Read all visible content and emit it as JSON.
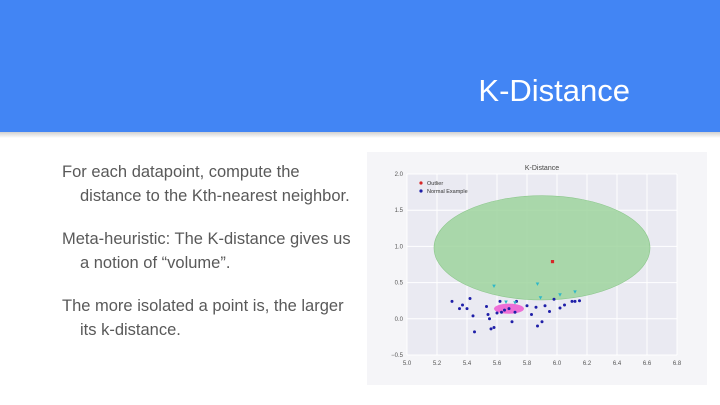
{
  "slide": {
    "title": "K-Distance",
    "bullets": [
      "For each datapoint, compute the distance to the Kth-nearest neighbor.",
      "Meta-heuristic: The K-distance gives us a notion of “volume”.",
      "The more isolated a point is, the larger its k-distance."
    ]
  },
  "colors": {
    "header": "#4285f4",
    "outlier": "#d62728",
    "normal": "#1f1fa8",
    "circle_fill": "#9ed39e",
    "highlight": "#ee44cc"
  },
  "chart_data": {
    "type": "scatter",
    "title": "K-Distance",
    "xlim": [
      5.0,
      6.8
    ],
    "ylim": [
      -0.5,
      2.0
    ],
    "x_ticks": [
      "5.0",
      "5.2",
      "5.4",
      "5.6",
      "5.8",
      "6.0",
      "6.2",
      "6.4",
      "6.6",
      "6.8"
    ],
    "y_ticks": [
      "2.0",
      "1.5",
      "1.0",
      "0.5",
      "0.0",
      "−0.5"
    ],
    "legend": {
      "placement": "top-left",
      "entries": [
        {
          "label": "Outlier",
          "color": "#d62728"
        },
        {
          "label": "Normal Example",
          "color": "#1f1fa8"
        }
      ]
    },
    "grid": true,
    "circle": {
      "center": [
        5.9,
        0.98
      ],
      "radius_x": 0.72,
      "radius_y": 0.72
    },
    "highlight_ellipse": {
      "center": [
        5.68,
        0.14
      ],
      "radius_x": 0.1,
      "radius_y": 0.07
    },
    "series": [
      {
        "name": "Outlier",
        "color": "#d62728",
        "marker": "square",
        "points": [
          [
            5.97,
            0.79
          ]
        ]
      },
      {
        "name": "Normal Example",
        "color": "#1f1fa8",
        "marker": "circle",
        "points": [
          [
            5.3,
            0.24
          ],
          [
            5.35,
            0.14
          ],
          [
            5.37,
            0.19
          ],
          [
            5.4,
            0.14
          ],
          [
            5.42,
            0.28
          ],
          [
            5.44,
            0.04
          ],
          [
            5.45,
            -0.18
          ],
          [
            5.53,
            0.17
          ],
          [
            5.54,
            0.06
          ],
          [
            5.55,
            0.0
          ],
          [
            5.56,
            -0.14
          ],
          [
            5.58,
            -0.12
          ],
          [
            5.6,
            0.08
          ],
          [
            5.62,
            0.24
          ],
          [
            5.63,
            0.09
          ],
          [
            5.65,
            0.12
          ],
          [
            5.68,
            0.14
          ],
          [
            5.7,
            -0.04
          ],
          [
            5.72,
            0.09
          ],
          [
            5.73,
            0.24
          ],
          [
            5.8,
            0.18
          ],
          [
            5.83,
            0.06
          ],
          [
            5.86,
            0.16
          ],
          [
            5.9,
            -0.04
          ],
          [
            5.92,
            0.18
          ],
          [
            5.95,
            0.1
          ],
          [
            5.98,
            0.27
          ],
          [
            6.02,
            0.15
          ],
          [
            6.05,
            0.19
          ],
          [
            6.1,
            0.24
          ],
          [
            6.12,
            0.24
          ],
          [
            6.15,
            0.25
          ],
          [
            5.87,
            -0.1
          ]
        ]
      },
      {
        "name": "",
        "color": "#2eb8c8",
        "marker": "triangle",
        "points": [
          [
            5.58,
            0.45
          ],
          [
            5.87,
            0.48
          ],
          [
            5.89,
            0.29
          ],
          [
            6.02,
            0.33
          ],
          [
            6.12,
            0.37
          ],
          [
            5.66,
            0.23
          ],
          [
            5.72,
            0.22
          ]
        ]
      }
    ]
  }
}
